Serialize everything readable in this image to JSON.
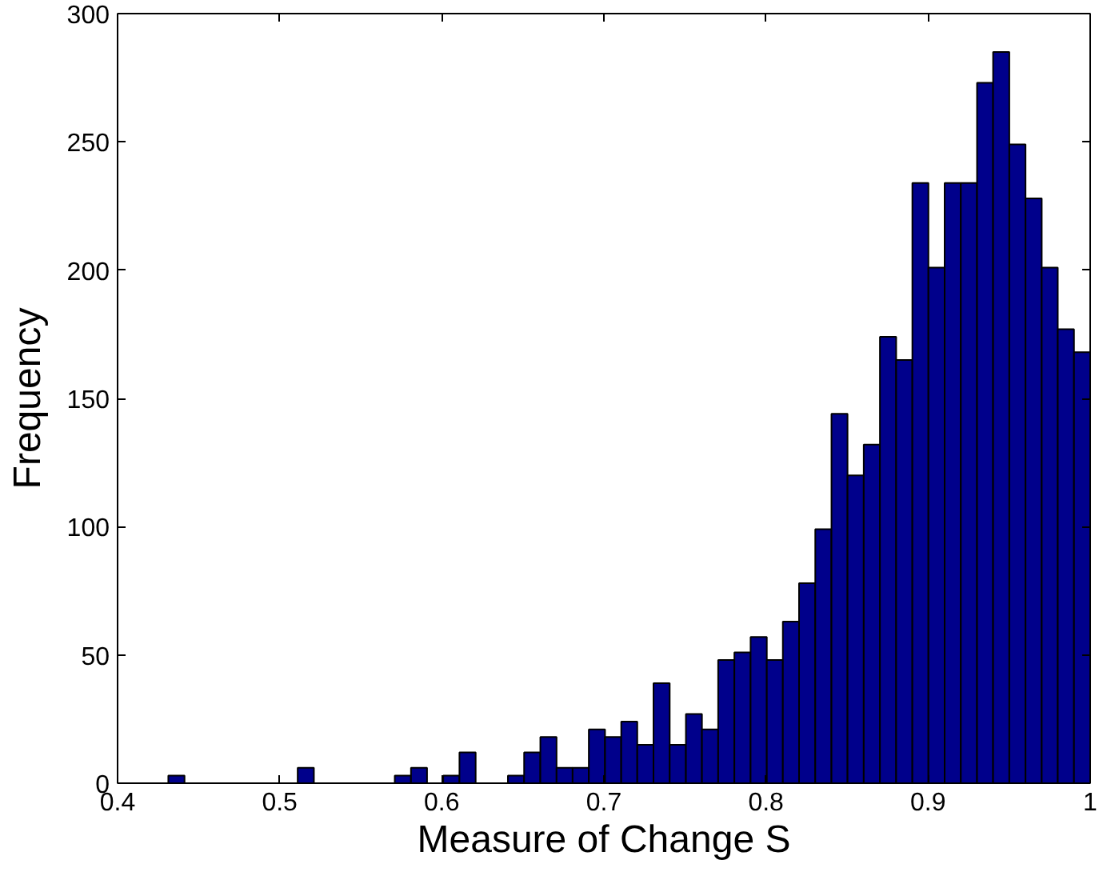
{
  "chart_data": {
    "type": "histogram",
    "xlabel": "Measure of Change S",
    "ylabel": "Frequency",
    "bins": [
      0.4313,
      0.4413,
      0.4513,
      0.4612,
      0.4712,
      0.4812,
      0.4912,
      0.5011,
      0.5111,
      0.5211,
      0.5311,
      0.541,
      0.551,
      0.561,
      0.571,
      0.581,
      0.5909,
      0.6009,
      0.6109,
      0.6209,
      0.6308,
      0.6408,
      0.6508,
      0.6608,
      0.6708,
      0.6807,
      0.6907,
      0.7007,
      0.7107,
      0.7206,
      0.7306,
      0.7406,
      0.7506,
      0.7605,
      0.7705,
      0.7805,
      0.7905,
      0.8005,
      0.8104,
      0.8204,
      0.8304,
      0.8404,
      0.8503,
      0.8603,
      0.8703,
      0.8803,
      0.8903,
      0.9002,
      0.9102,
      0.9202,
      0.9302,
      0.9401,
      0.9501,
      0.9601,
      0.9701,
      0.98,
      0.99,
      1.0
    ],
    "values": [
      3,
      0,
      0,
      0,
      0,
      0,
      0,
      0,
      6,
      0,
      0,
      0,
      0,
      0,
      3,
      6,
      0,
      3,
      12,
      0,
      0,
      3,
      12,
      18,
      6,
      6,
      21,
      18,
      24,
      15,
      39,
      15,
      27,
      21,
      48,
      51,
      57,
      48,
      63,
      78,
      99,
      144,
      120,
      132,
      174,
      165,
      234,
      201,
      234,
      234,
      273,
      285,
      249,
      228,
      201,
      177,
      168
    ],
    "color": "#00008b",
    "xlim": [
      0.4,
      1.0
    ],
    "ylim": [
      0,
      300
    ],
    "xticks": [
      0.4,
      0.5,
      0.6,
      0.7,
      0.8,
      0.9,
      {
        "value": 1.0,
        "label": "1"
      }
    ],
    "yticks": [
      0,
      50,
      100,
      150,
      200,
      250,
      300
    ],
    "grid": false
  }
}
